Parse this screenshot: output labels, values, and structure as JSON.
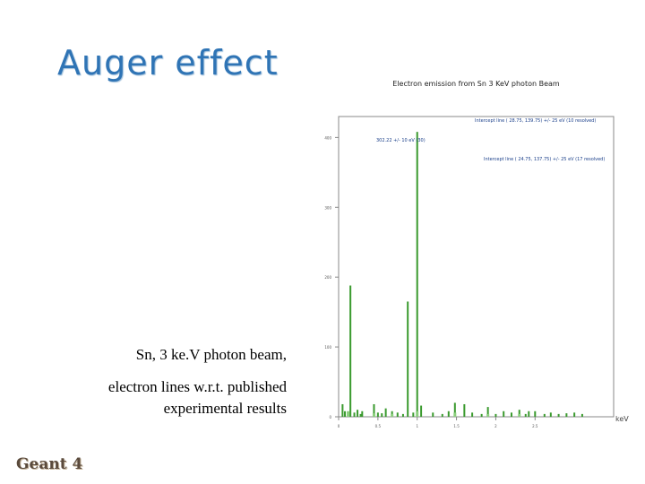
{
  "slide": {
    "title": "Auger effect",
    "caption_line1": "Sn, 3 ke.V photon beam,",
    "caption_line2": "electron lines w.r.t. published experimental results",
    "logo": "Geant 4"
  },
  "chart_data": {
    "type": "bar",
    "title": "Electron emission from Sn 3 KeV photon Beam",
    "xlabel": "keV",
    "ylabel": "",
    "xlim": [
      0,
      3.5
    ],
    "ylim": [
      0,
      430
    ],
    "y_ticks": [
      0,
      100,
      200,
      300,
      400
    ],
    "x_ticks": [
      0,
      0.5,
      1,
      1.5,
      2,
      2.5
    ],
    "annotations": [
      "Intercept line ( 28.75, 139.75) +/- 25 eV (10 resolved)",
      "302.22 +/- 10 eV (30)",
      "Intercept line ( 24.75, 137.75) +/- 25 eV (17 resolved)"
    ],
    "x": [
      0.05,
      0.08,
      0.12,
      0.15,
      0.2,
      0.24,
      0.28,
      0.3,
      0.45,
      0.5,
      0.55,
      0.6,
      0.68,
      0.75,
      0.82,
      0.88,
      0.95,
      1.0,
      1.05,
      1.2,
      1.32,
      1.4,
      1.48,
      1.6,
      1.7,
      1.82,
      1.9,
      2.0,
      2.1,
      2.2,
      2.3,
      2.38,
      2.42,
      2.5,
      2.62,
      2.7,
      2.8,
      2.9,
      3.0,
      3.1
    ],
    "values": [
      18,
      8,
      6,
      188,
      6,
      10,
      4,
      8,
      18,
      6,
      5,
      12,
      8,
      6,
      4,
      165,
      6,
      408,
      16,
      6,
      4,
      8,
      20,
      18,
      6,
      4,
      14,
      4,
      8,
      6,
      10,
      4,
      8,
      8,
      4,
      6,
      4,
      5,
      6,
      4
    ],
    "highlight_x": [
      0.12,
      0.45,
      0.68,
      1.0,
      1.48,
      1.9,
      2.3
    ],
    "highlight_values": [
      8,
      5,
      4,
      8,
      6,
      4,
      4
    ]
  }
}
